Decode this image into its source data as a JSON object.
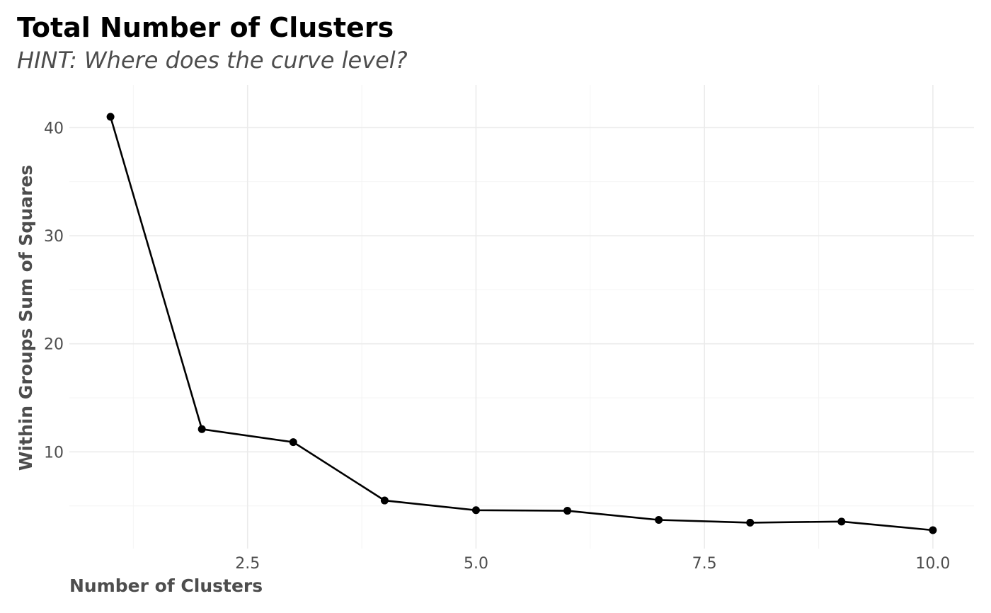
{
  "chart_data": {
    "type": "line",
    "title": "Total Number of Clusters",
    "subtitle": "HINT: Where does the curve level?",
    "xlabel": "Number of Clusters",
    "ylabel": "Within Groups Sum of Squares",
    "x": [
      1,
      2,
      3,
      4,
      5,
      6,
      7,
      8,
      9,
      10
    ],
    "series": [
      {
        "values": [
          41.0,
          12.1,
          10.9,
          5.5,
          4.6,
          4.55,
          3.7,
          3.45,
          3.55,
          2.75
        ]
      }
    ],
    "xlim": [
      0.55,
      10.45
    ],
    "ylim": [
      1.05,
      43.95
    ],
    "x_ticks": [
      2.5,
      5.0,
      7.5,
      10.0
    ],
    "x_tick_labels": [
      "2.5",
      "5.0",
      "7.5",
      "10.0"
    ],
    "x_minor_ticks": [
      1.25,
      3.75,
      6.25,
      8.75
    ],
    "y_ticks": [
      10,
      20,
      30,
      40
    ],
    "y_tick_labels": [
      "10",
      "20",
      "30",
      "40"
    ],
    "y_minor_ticks": [
      5,
      15,
      25,
      35
    ],
    "grid": true,
    "legend": "none",
    "colors": {
      "line": "#000000",
      "point": "#000000",
      "grid_major": "#ebebeb",
      "grid_minor": "#f4f4f4",
      "text": "#4d4d4d"
    }
  }
}
